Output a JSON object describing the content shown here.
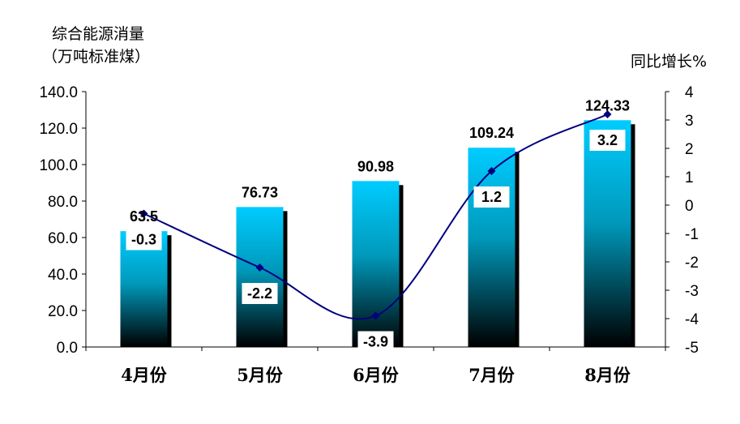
{
  "chart_data": {
    "type": "bar",
    "categories": [
      "4月份",
      "5月份",
      "6月份",
      "7月份",
      "8月份"
    ],
    "y_left": {
      "label_line1": "综合能源消量",
      "label_line2": "（万吨标准煤）",
      "range": [
        0,
        140
      ],
      "step": 20,
      "tick_labels": [
        "0.0",
        "20.0",
        "40.0",
        "60.0",
        "80.0",
        "100.0",
        "120.0",
        "140.0"
      ]
    },
    "y_right": {
      "label": "同比增长%",
      "range": [
        -5,
        4
      ],
      "step": 1,
      "tick_labels": [
        "-5",
        "-4",
        "-3",
        "-2",
        "-1",
        "0",
        "1",
        "2",
        "3",
        "4"
      ]
    },
    "series": [
      {
        "type": "bar",
        "axis": "left",
        "values": [
          63.5,
          76.73,
          90.98,
          109.24,
          124.33
        ],
        "labels": [
          "63.5",
          "76.73",
          "90.98",
          "109.24",
          "124.33"
        ]
      },
      {
        "type": "line",
        "axis": "right",
        "values": [
          -0.3,
          -2.2,
          -3.9,
          1.2,
          3.2
        ],
        "labels": [
          "-0.3",
          "-2.2",
          "-3.9",
          "1.2",
          "3.2"
        ]
      }
    ],
    "colors": {
      "bar_top": "#00ccff",
      "bar_bottom": "#000000",
      "bar_shadow": "#000000",
      "line": "#000080",
      "marker": "#000080"
    },
    "grid": false,
    "legend": "none"
  }
}
